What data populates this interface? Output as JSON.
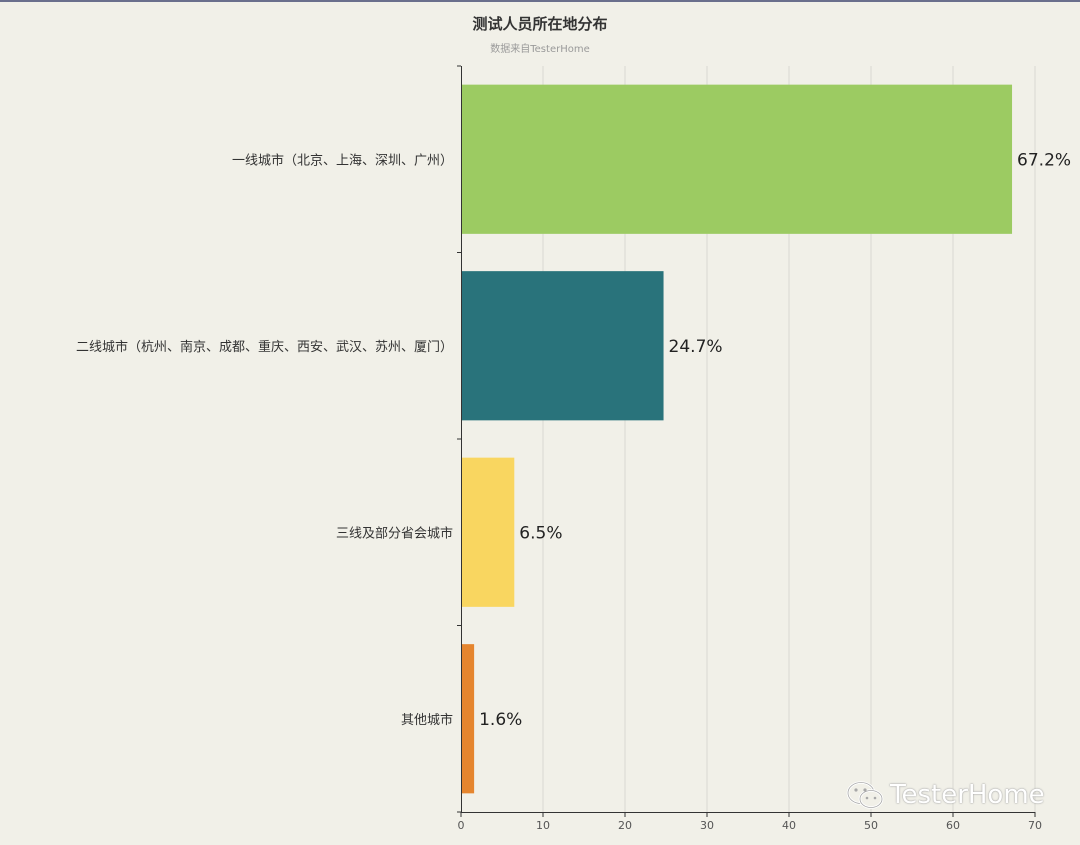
{
  "chart_data": {
    "type": "bar",
    "orientation": "horizontal",
    "title": "测试人员所在地分布",
    "subtitle": "数据来自TesterHome",
    "categories": [
      "一线城市（北京、上海、深圳、广州）",
      "二线城市（杭州、南京、成都、重庆、西安、武汉、苏州、厦门）",
      "三线及部分省会城市",
      "其他城市"
    ],
    "values": [
      67.2,
      24.7,
      6.5,
      1.6
    ],
    "data_labels": [
      "67.2%",
      "24.7%",
      "6.5%",
      "1.6%"
    ],
    "colors": [
      "#9ccb62",
      "#29737b",
      "#f9d660",
      "#e5852e"
    ],
    "xlim": [
      0,
      70
    ],
    "xticks": [
      0,
      10,
      20,
      30,
      40,
      50,
      60,
      70
    ],
    "grid": true,
    "legend": "none"
  },
  "watermark": {
    "text": "TesterHome",
    "icon": "wechat-icon"
  }
}
